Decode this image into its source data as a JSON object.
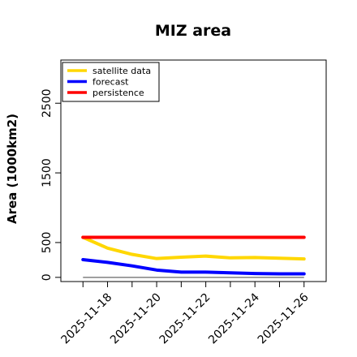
{
  "chart_data": {
    "type": "line",
    "title": "MIZ area",
    "xlabel": "",
    "ylabel": "Area (1000km2)",
    "x": [
      "2025-11-17",
      "2025-11-18",
      "2025-11-19",
      "2025-11-20",
      "2025-11-21",
      "2025-11-22",
      "2025-11-23",
      "2025-11-24",
      "2025-11-25",
      "2025-11-26"
    ],
    "x_tick_labels": [
      "2025-11-18",
      "2025-11-20",
      "2025-11-22",
      "2025-11-24",
      "2025-11-26"
    ],
    "x_tick_highlight": "2025-11-18",
    "x_tick_highlight_color": "#228b22",
    "ylim": [
      -60,
      3120
    ],
    "y_ticks": [
      0,
      500,
      1500,
      2500
    ],
    "grid": false,
    "legend_position": "top-left",
    "baseline": {
      "value": 0,
      "color": "#808080"
    },
    "series": [
      {
        "name": "satellite data",
        "color": "#ffd700",
        "values": [
          575,
          420,
          330,
          270,
          290,
          305,
          280,
          285,
          275,
          265
        ]
      },
      {
        "name": "forecast",
        "color": "#0000ff",
        "values": [
          255,
          215,
          165,
          105,
          75,
          75,
          65,
          55,
          50,
          50
        ]
      },
      {
        "name": "persistence",
        "color": "#ff0000",
        "values": [
          575,
          575,
          575,
          575,
          575,
          575,
          575,
          575,
          575,
          575
        ]
      }
    ]
  }
}
